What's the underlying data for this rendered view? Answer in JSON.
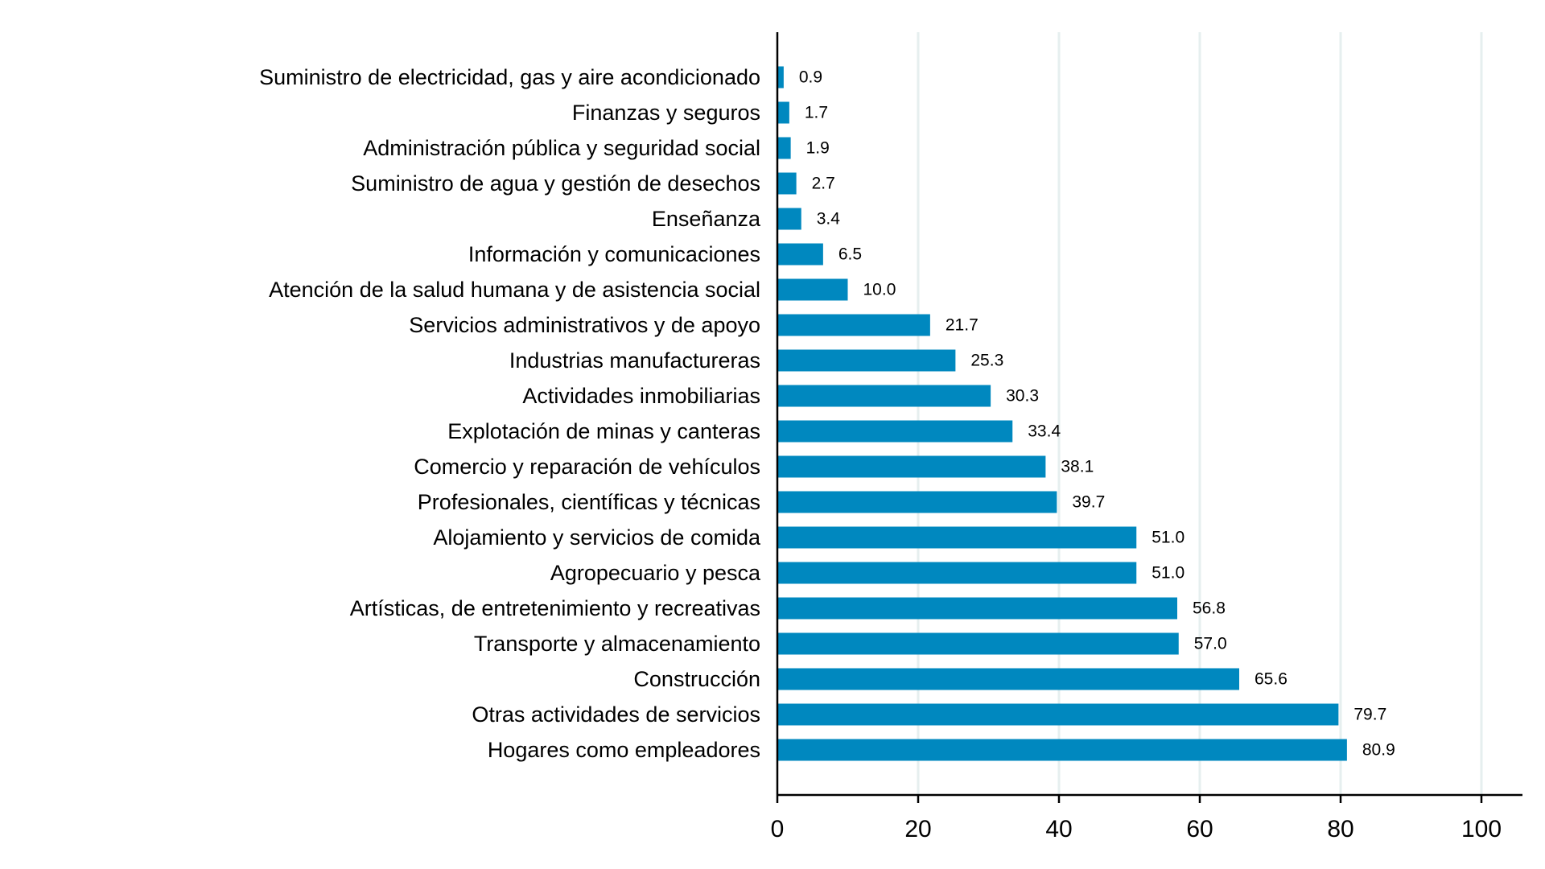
{
  "chart_data": {
    "type": "bar",
    "orientation": "horizontal",
    "title": "",
    "xlabel": "",
    "ylabel": "",
    "categories": [
      "Suministro de electricidad, gas y aire acondicionado",
      "Finanzas y seguros",
      "Administración pública y seguridad social",
      "Suministro de agua y gestión de desechos",
      "Enseñanza",
      "Información y comunicaciones",
      "Atención de la salud humana y de asistencia social",
      "Servicios administrativos y de apoyo",
      "Industrias manufactureras",
      "Actividades inmobiliarias",
      "Explotación de minas y canteras",
      "Comercio y reparación de vehículos",
      "Profesionales, científicas y técnicas",
      "Alojamiento y servicios de comida",
      "Agropecuario y pesca",
      "Artísticas, de entretenimiento y recreativas",
      "Transporte y almacenamiento",
      "Construcción",
      "Otras actividades de servicios",
      "Hogares como empleadores"
    ],
    "values": [
      0.9,
      1.7,
      1.9,
      2.7,
      3.4,
      6.5,
      10.0,
      21.7,
      25.3,
      30.3,
      33.4,
      38.1,
      39.7,
      51.0,
      51.0,
      56.8,
      57.0,
      65.6,
      79.7,
      80.9
    ],
    "value_labels": [
      "0.9",
      "1.7",
      "1.9",
      "2.7",
      "3.4",
      "6.5",
      "10.0",
      "21.7",
      "25.3",
      "30.3",
      "33.4",
      "38.1",
      "39.7",
      "51.0",
      "51.0",
      "56.8",
      "57.0",
      "65.6",
      "79.7",
      "80.9"
    ],
    "xlim": [
      0,
      100
    ],
    "xticks": [
      0,
      20,
      40,
      60,
      80,
      100
    ],
    "xtick_labels": [
      "0",
      "20",
      "40",
      "60",
      "80",
      "100"
    ],
    "grid": "vertical",
    "legend": "none",
    "colors": {
      "bar": "#0088bf",
      "grid": "#e6efef",
      "axis": "#000000"
    }
  }
}
